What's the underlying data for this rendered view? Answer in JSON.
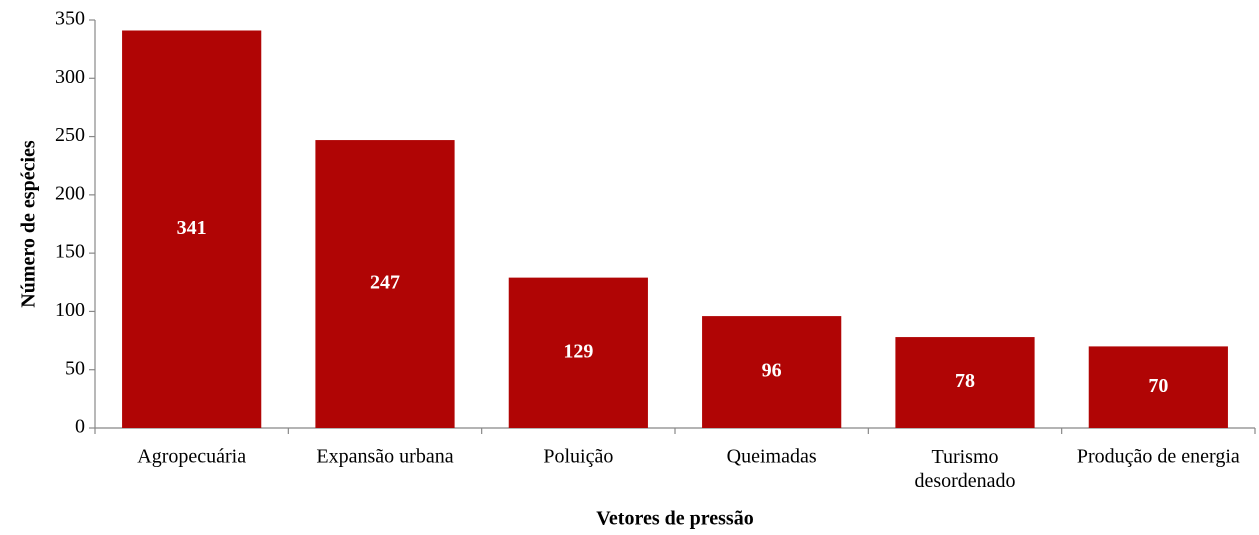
{
  "chart_data": {
    "type": "bar",
    "x_label": "Vetores de pressão",
    "y_label": "Número de espécies",
    "categories": [
      "Agropecuária",
      "Expansão urbana",
      "Poluição",
      "Queimadas",
      "Turismo desordenado",
      "Produção de energia"
    ],
    "values": [
      341,
      247,
      129,
      96,
      78,
      70
    ],
    "color": "#b00505",
    "ylim": [
      0,
      350
    ],
    "yticks": [
      0,
      50,
      100,
      150,
      200,
      250,
      300,
      350
    ],
    "grid": false
  }
}
